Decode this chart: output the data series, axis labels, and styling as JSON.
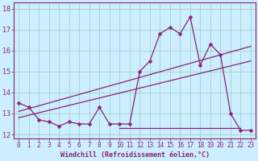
{
  "xlabel": "Windchill (Refroidissement éolien,°C)",
  "background_color": "#bbeedd",
  "plot_bg_color": "#cceeff",
  "line_color": "#882277",
  "grid_color": "#99ccbb",
  "x_ticks": [
    0,
    1,
    2,
    3,
    4,
    5,
    6,
    7,
    8,
    9,
    10,
    11,
    12,
    13,
    14,
    15,
    16,
    17,
    18,
    19,
    20,
    21,
    22,
    23
  ],
  "ylim": [
    11.8,
    18.3
  ],
  "y_ticks": [
    12,
    13,
    14,
    15,
    16,
    17,
    18
  ],
  "series1_x": [
    0,
    1,
    2,
    3,
    4,
    5,
    6,
    7,
    8,
    9,
    10,
    11,
    12,
    13,
    14,
    15,
    16,
    17,
    18,
    19,
    20,
    21,
    22,
    23
  ],
  "series1_y": [
    13.5,
    13.3,
    12.7,
    12.6,
    12.4,
    12.6,
    12.5,
    12.5,
    13.3,
    12.5,
    12.5,
    12.5,
    15.0,
    15.5,
    16.8,
    17.1,
    16.8,
    17.6,
    15.3,
    16.3,
    15.8,
    13.0,
    12.2,
    12.2
  ],
  "series2_x": [
    0,
    23
  ],
  "series2_y": [
    13.1,
    16.2
  ],
  "series3_x": [
    0,
    23
  ],
  "series3_y": [
    12.8,
    15.5
  ],
  "series4_x": [
    10,
    22
  ],
  "series4_y": [
    12.3,
    12.3
  ],
  "xlabel_fontsize": 6,
  "tick_fontsize": 5.5
}
